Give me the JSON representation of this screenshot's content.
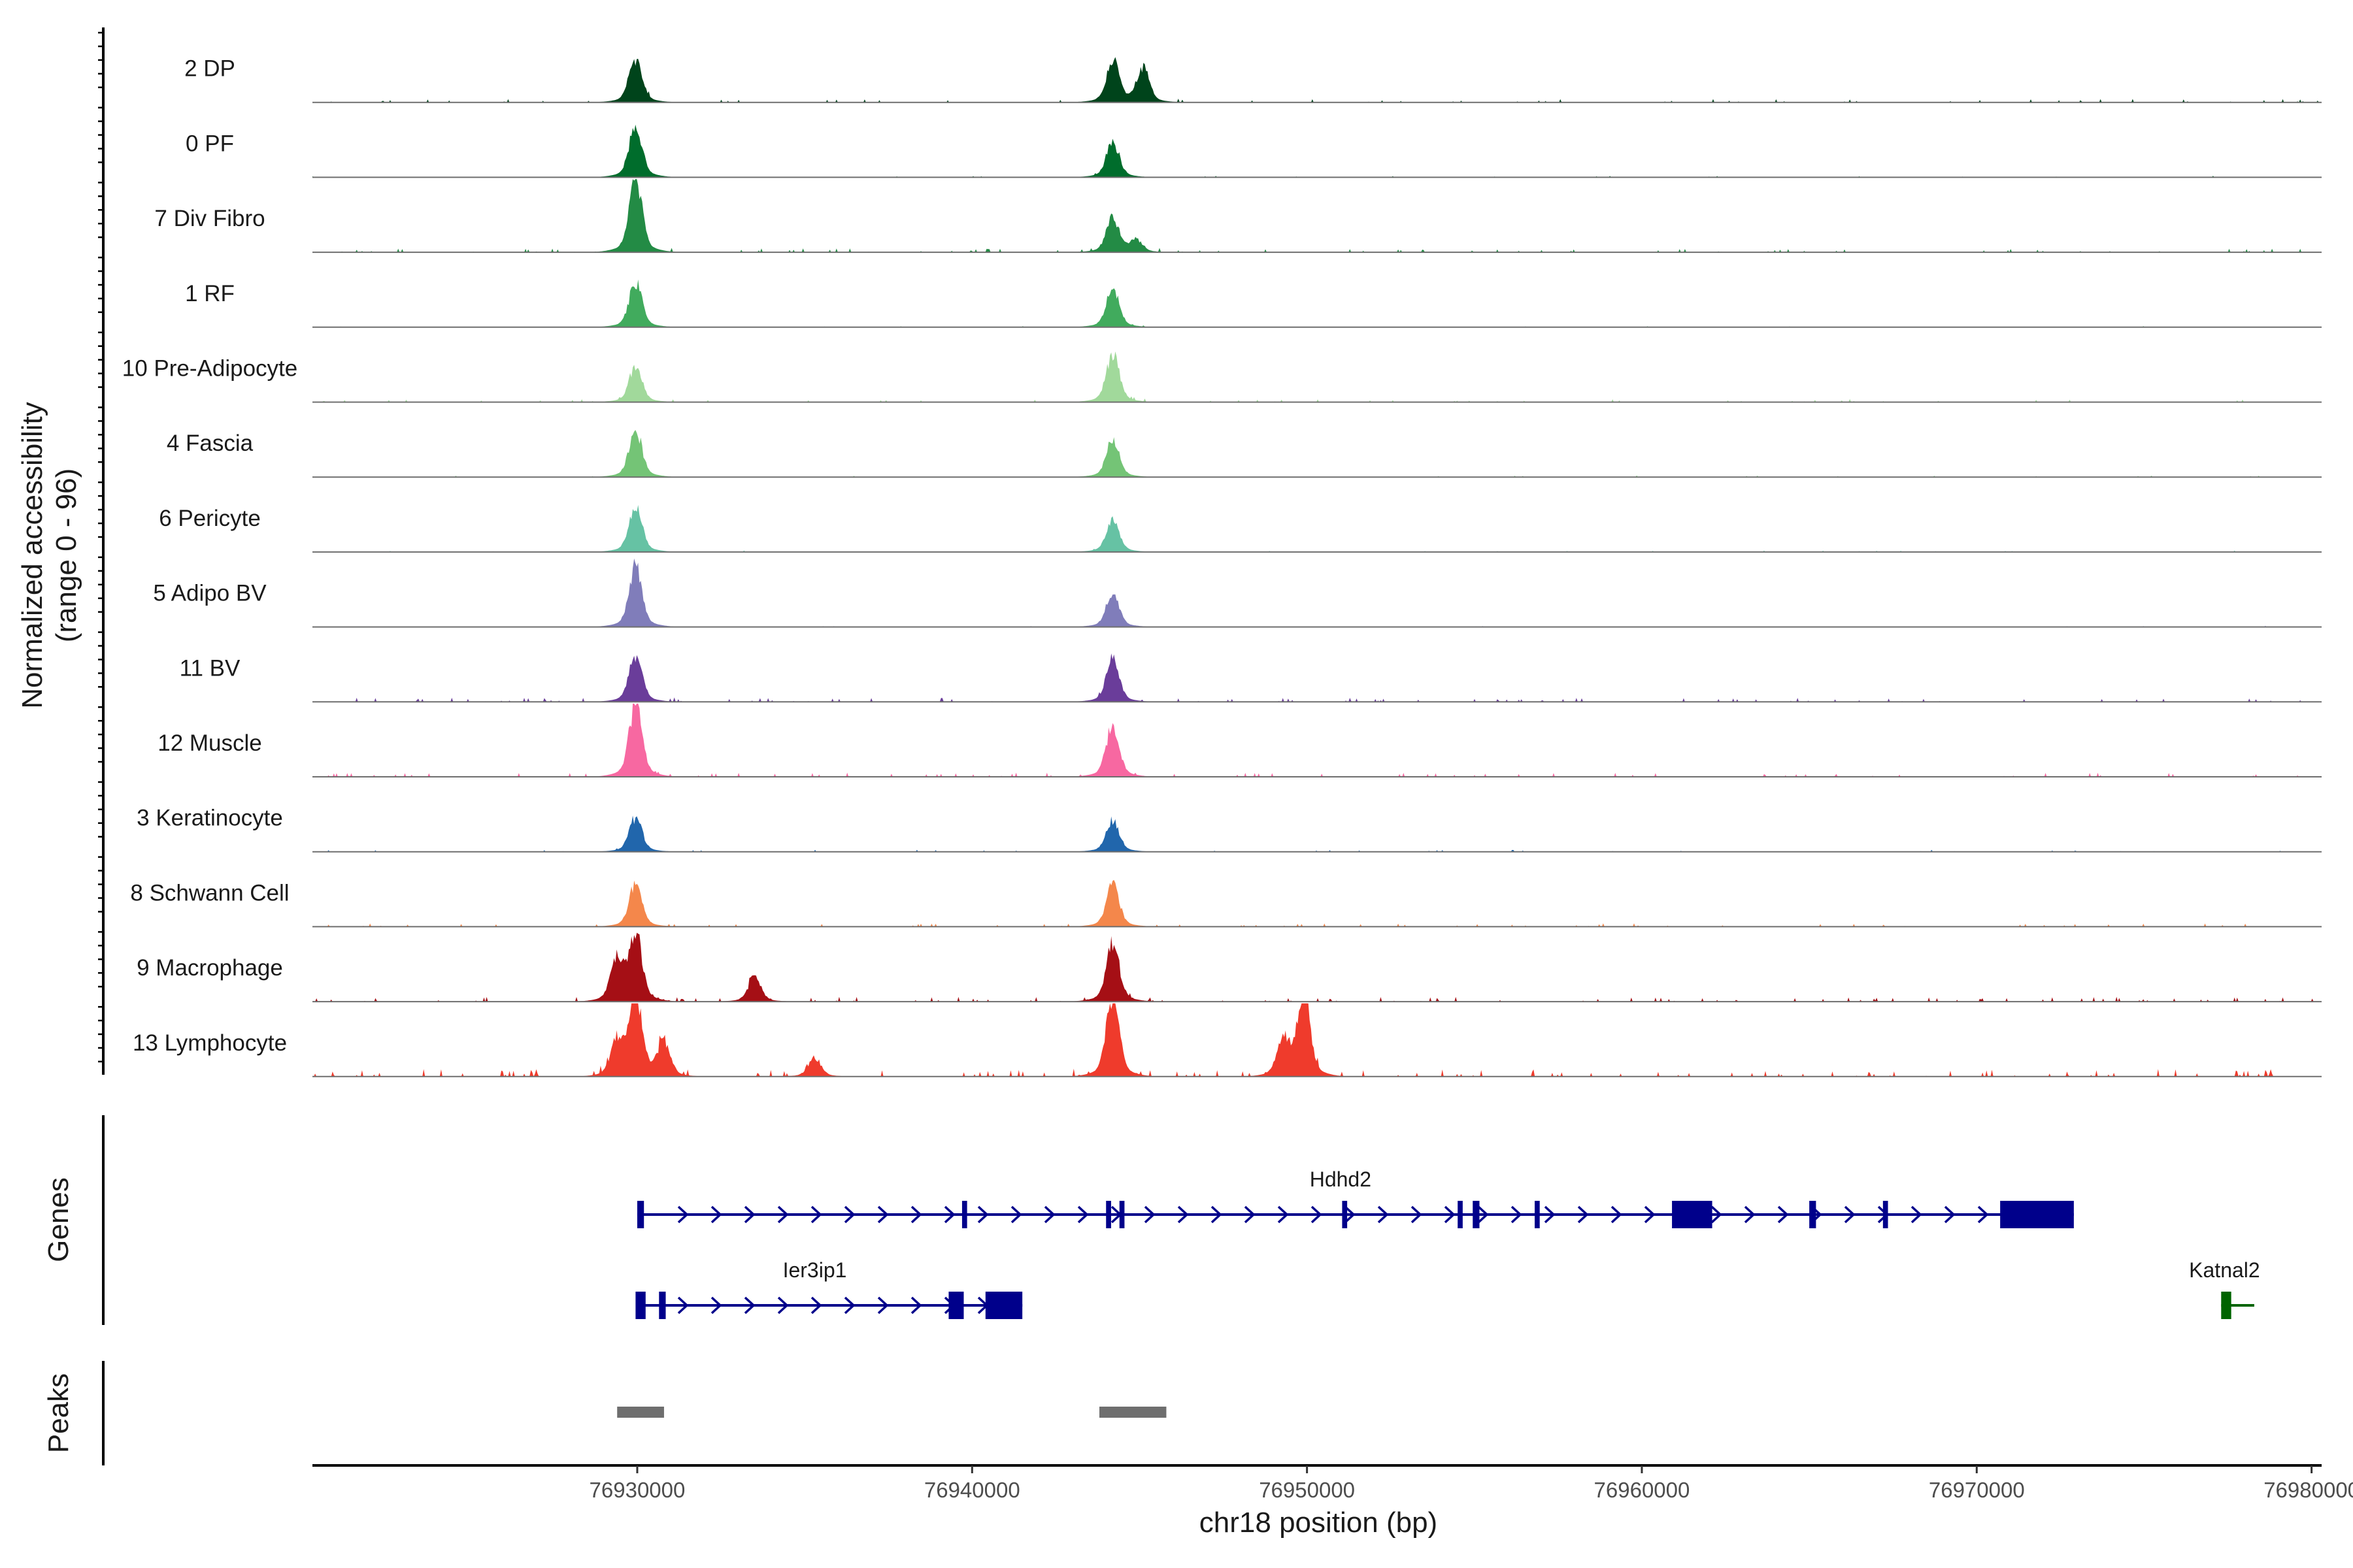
{
  "chart_data": {
    "type": "area",
    "region": "chr18",
    "xlim": [
      76920300,
      76980300
    ],
    "ylabel": "Normalized accessibility\n(range 0 - 96)",
    "ylim": [
      0,
      96
    ],
    "xlabel": "chr18 position (bp)",
    "x_ticks": [
      76930000,
      76940000,
      76950000,
      76960000,
      76970000,
      76980000
    ],
    "x_tick_labels": [
      "76930000",
      "76940000",
      "76950000",
      "76960000",
      "76970000",
      "76980000"
    ],
    "tracks": [
      {
        "name": "2 DP",
        "color": "#00441B",
        "peaks": [
          [
            76929950,
            52
          ],
          [
            76944200,
            48
          ],
          [
            76945100,
            40
          ]
        ],
        "noise": 0.9
      },
      {
        "name": "0 PF",
        "color": "#006D2C",
        "peaks": [
          [
            76929950,
            62
          ],
          [
            76944200,
            42
          ]
        ],
        "noise": 0.4
      },
      {
        "name": "7 Div Fibro",
        "color": "#238B45",
        "peaks": [
          [
            76929950,
            85
          ],
          [
            76944200,
            40
          ],
          [
            76944900,
            14
          ]
        ],
        "noise": 1.0
      },
      {
        "name": "1 RF",
        "color": "#41AB5D",
        "peaks": [
          [
            76929950,
            52
          ],
          [
            76944200,
            45
          ]
        ],
        "noise": 0.3
      },
      {
        "name": "10 Pre-Adipocyte",
        "color": "#A1D99B",
        "peaks": [
          [
            76929950,
            42
          ],
          [
            76944200,
            56
          ]
        ],
        "noise": 0.8
      },
      {
        "name": "4 Fascia",
        "color": "#74C476",
        "peaks": [
          [
            76929950,
            56
          ],
          [
            76944200,
            44
          ]
        ],
        "noise": 0.4
      },
      {
        "name": "6 Pericyte",
        "color": "#66C2A4",
        "peaks": [
          [
            76929950,
            56
          ],
          [
            76944200,
            40
          ]
        ],
        "noise": 0.4
      },
      {
        "name": "5 Adipo BV",
        "color": "#807DBA",
        "peaks": [
          [
            76929950,
            70
          ],
          [
            76944200,
            40
          ]
        ],
        "noise": 0.3
      },
      {
        "name": "11 BV",
        "color": "#6A3D9A",
        "peaks": [
          [
            76929950,
            56
          ],
          [
            76944200,
            50
          ]
        ],
        "noise": 1.1
      },
      {
        "name": "12 Muscle",
        "color": "#F768A1",
        "peaks": [
          [
            76929950,
            85
          ],
          [
            76944200,
            62
          ]
        ],
        "noise": 1.1
      },
      {
        "name": "3 Keratinocyte",
        "color": "#2166AC",
        "peaks": [
          [
            76929950,
            40
          ],
          [
            76944200,
            38
          ]
        ],
        "noise": 0.5
      },
      {
        "name": "8 Schwann Cell",
        "color": "#F4874B",
        "peaks": [
          [
            76929950,
            50
          ],
          [
            76944200,
            50
          ]
        ],
        "noise": 0.9
      },
      {
        "name": "9 Macrophage",
        "color": "#A50F15",
        "peaks": [
          [
            76929950,
            80
          ],
          [
            76929400,
            50
          ],
          [
            76933500,
            28
          ],
          [
            76944200,
            70
          ]
        ],
        "noise": 1.3
      },
      {
        "name": "13 Lymphocyte",
        "color": "#EF3B2C",
        "peaks": [
          [
            76929950,
            96
          ],
          [
            76929400,
            40
          ],
          [
            76930800,
            40
          ],
          [
            76944200,
            96
          ],
          [
            76949900,
            96
          ],
          [
            76949300,
            45
          ],
          [
            76935300,
            22
          ]
        ],
        "noise": 2.0
      }
    ],
    "genes_label": "Genes",
    "genes": [
      {
        "name": "Hdhd2",
        "strand": "+",
        "color": "#00008B",
        "start": 76930000,
        "end": 76972900,
        "row": 0,
        "exons": [
          [
            76930000,
            76930200,
            0.5
          ],
          [
            76939700,
            76939850,
            0.5
          ],
          [
            76944000,
            76944150,
            0.5
          ],
          [
            76944400,
            76944550,
            0.5
          ],
          [
            76951050,
            76951200,
            0.5
          ],
          [
            76954500,
            76954650,
            0.5
          ],
          [
            76954950,
            76955150,
            0.5
          ],
          [
            76956800,
            76956950,
            0.5
          ],
          [
            76960900,
            76962100,
            1.0
          ],
          [
            76965000,
            76965200,
            0.5
          ],
          [
            76967200,
            76967350,
            0.5
          ],
          [
            76970700,
            76972900,
            1.0
          ]
        ]
      },
      {
        "name": "Ier3ip1",
        "strand": "+",
        "color": "#00008B",
        "start": 76930000,
        "end": 76941500,
        "row": 1,
        "exons": [
          [
            76929950,
            76930250,
            0.5
          ],
          [
            76930650,
            76930850,
            0.5
          ],
          [
            76939300,
            76939750,
            0.5
          ],
          [
            76940400,
            76941500,
            1.0
          ]
        ]
      },
      {
        "name": "Katnal2",
        "strand": "-",
        "color": "#006400",
        "start": 76977300,
        "end": 76977800,
        "row": 1,
        "exons": [
          [
            76977300,
            76977600,
            1.0
          ]
        ]
      }
    ],
    "peaks_label": "Peaks",
    "peak_regions": [
      [
        76929400,
        76930800
      ],
      [
        76943800,
        76945800
      ]
    ],
    "grid": false
  }
}
